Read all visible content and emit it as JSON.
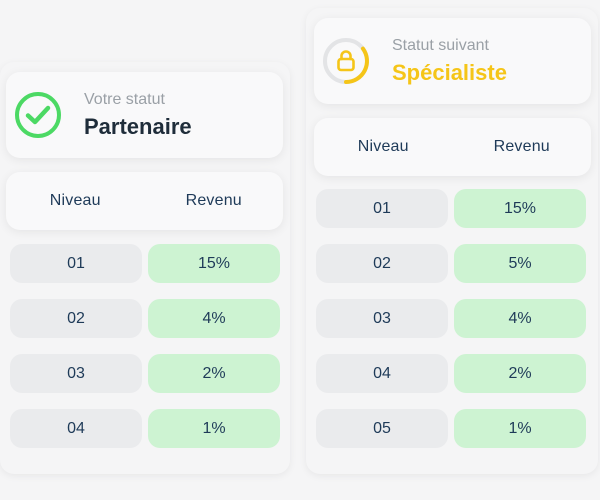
{
  "colors": {
    "success": "#4cd964",
    "accent_gold": "#f5c518",
    "text_dark": "#1f2d3a",
    "text_navy": "#1e3a58",
    "muted": "#9aa0a6",
    "revenue_bg": "#cdf3d2",
    "level_bg": "#eaebed"
  },
  "current": {
    "label": "Votre statut",
    "value": "Partenaire",
    "icon": "check-circle-icon",
    "table": {
      "headers": {
        "level": "Niveau",
        "revenue": "Revenu"
      },
      "rows": [
        {
          "level": "01",
          "revenue": "15%"
        },
        {
          "level": "02",
          "revenue": "4%"
        },
        {
          "level": "03",
          "revenue": "2%"
        },
        {
          "level": "04",
          "revenue": "1%"
        }
      ]
    }
  },
  "next": {
    "label": "Statut suivant",
    "value": "Spécialiste",
    "icon": "lock-icon",
    "progress": 0.35,
    "table": {
      "headers": {
        "level": "Niveau",
        "revenue": "Revenu"
      },
      "rows": [
        {
          "level": "01",
          "revenue": "15%"
        },
        {
          "level": "02",
          "revenue": "5%"
        },
        {
          "level": "03",
          "revenue": "4%"
        },
        {
          "level": "04",
          "revenue": "2%"
        },
        {
          "level": "05",
          "revenue": "1%"
        }
      ]
    }
  }
}
